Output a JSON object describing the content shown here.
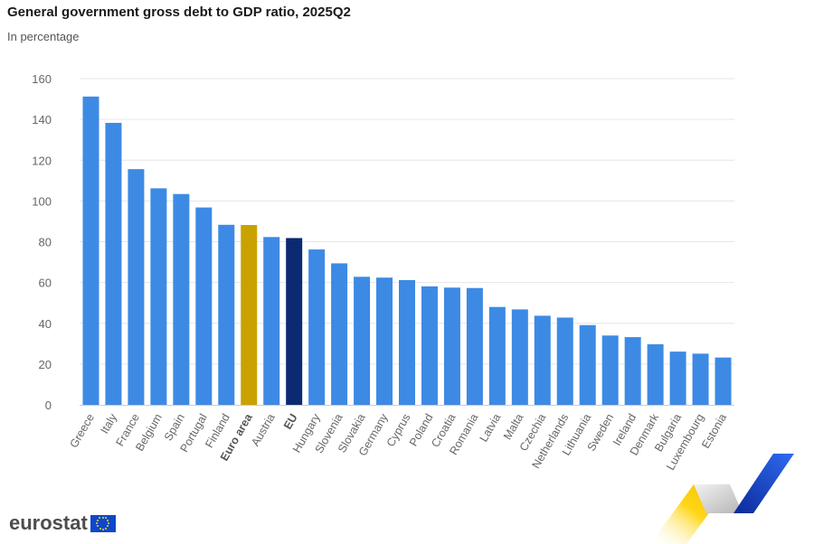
{
  "header": {
    "title": "General government gross debt to GDP ratio, 2025Q2",
    "subtitle": "In percentage"
  },
  "logo": {
    "text": "eurostat"
  },
  "colors": {
    "bar": "#3d8ae5",
    "euro_area": "#c9a200",
    "eu": "#0b2a72",
    "grid": "#e6e6e6"
  },
  "chart_data": {
    "type": "bar",
    "title": "General government gross debt to GDP ratio, 2025Q2",
    "subtitle": "In percentage",
    "xlabel": "",
    "ylabel": "",
    "ylim": [
      0,
      160
    ],
    "yticks": [
      0,
      20,
      40,
      60,
      80,
      100,
      120,
      140,
      160
    ],
    "grid": true,
    "categories": [
      "Greece",
      "Italy",
      "France",
      "Belgium",
      "Spain",
      "Portugal",
      "Finland",
      "Euro area",
      "Austria",
      "EU",
      "Hungary",
      "Slovenia",
      "Slovakia",
      "Germany",
      "Cyprus",
      "Poland",
      "Croatia",
      "Romania",
      "Latvia",
      "Malta",
      "Czechia",
      "Netherlands",
      "Lithuania",
      "Sweden",
      "Ireland",
      "Denmark",
      "Bulgaria",
      "Luxembourg",
      "Estonia"
    ],
    "values": [
      151.2,
      138.3,
      115.6,
      106.2,
      103.4,
      96.8,
      88.3,
      88.2,
      82.3,
      81.8,
      76.2,
      69.4,
      62.8,
      62.4,
      61.2,
      58.1,
      57.5,
      57.3,
      48.0,
      46.8,
      43.7,
      42.8,
      39.1,
      34.0,
      33.2,
      29.7,
      26.1,
      25.1,
      23.2
    ],
    "highlight": {
      "Euro area": "euro_area",
      "EU": "eu"
    }
  }
}
